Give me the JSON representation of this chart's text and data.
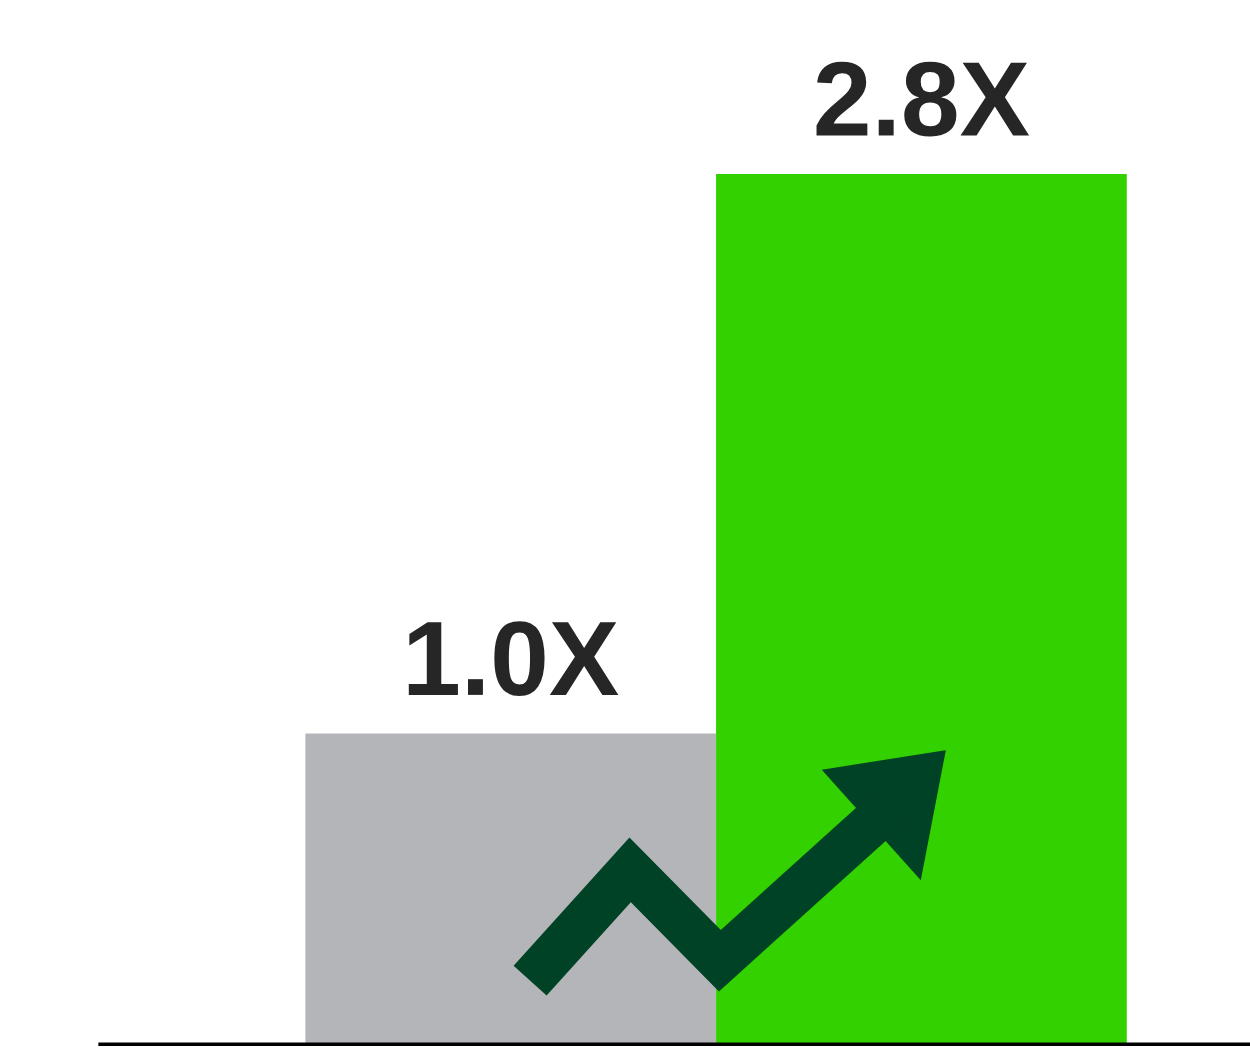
{
  "chart_data": {
    "type": "bar",
    "categories": [
      null,
      null
    ],
    "values": [
      1.0,
      2.8
    ],
    "colors": [
      "#b4b5b8",
      "#33d100"
    ],
    "value_labels": [
      "1.0X",
      "2.8X"
    ],
    "grid": false,
    "legend": false
  }
}
